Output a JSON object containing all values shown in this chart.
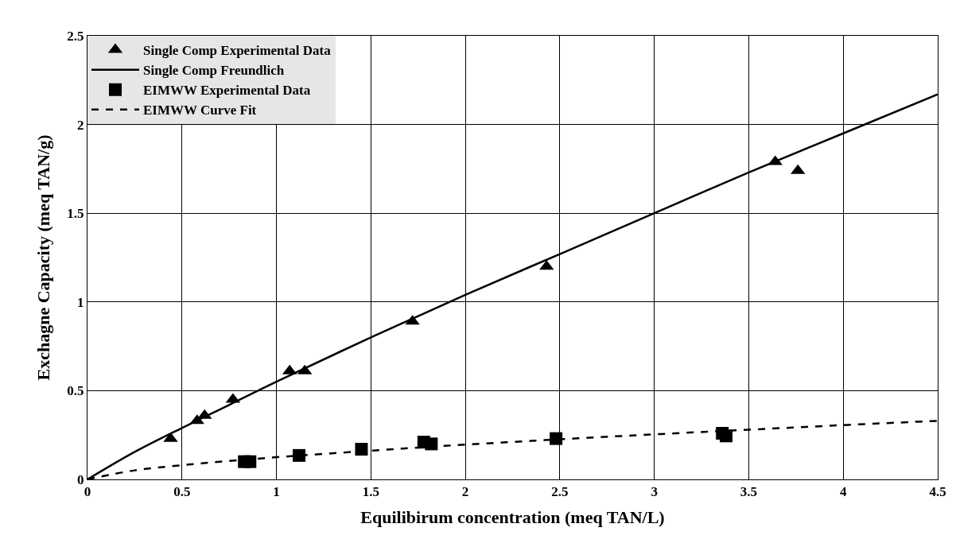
{
  "chart_data": {
    "type": "scatter",
    "xlabel": "Equilibirum concentration (meq TAN/L)",
    "ylabel": "Exchagne Capacity (meq TAN/g)",
    "xlim": [
      0,
      4.5
    ],
    "xticks": [
      0,
      0.5,
      1,
      1.5,
      2,
      2.5,
      3,
      3.5,
      4,
      4.5
    ],
    "ylim": [
      0,
      2.5
    ],
    "yticks": [
      0,
      0.5,
      1,
      1.5,
      2,
      2.5
    ],
    "grid": true,
    "legend": "top left",
    "series": [
      {
        "name": "Single Comp Experimental Data",
        "marker": "triangle",
        "color": "#000000",
        "x": [
          0.44,
          0.58,
          0.62,
          0.77,
          1.07,
          1.15,
          1.72,
          2.43,
          3.64,
          3.76
        ],
        "values": [
          0.23,
          0.33,
          0.36,
          0.45,
          0.61,
          0.61,
          0.89,
          1.2,
          1.79,
          1.74
        ]
      },
      {
        "name": "Single Comp Freundlich",
        "type": "line",
        "line_style": "solid",
        "color": "#000000",
        "x": [
          0,
          0.25,
          0.5,
          0.75,
          1,
          1.5,
          2,
          2.5,
          3,
          3.5,
          4,
          4.5
        ],
        "values": [
          0,
          0.155,
          0.29,
          0.42,
          0.55,
          0.8,
          1.04,
          1.27,
          1.5,
          1.73,
          1.95,
          2.17
        ]
      },
      {
        "name": "EIMWW Experimental Data",
        "marker": "square",
        "color": "#000000",
        "x": [
          0.83,
          0.86,
          1.12,
          1.45,
          1.78,
          1.82,
          2.48,
          3.36,
          3.38
        ],
        "values": [
          0.1,
          0.1,
          0.135,
          0.17,
          0.21,
          0.2,
          0.23,
          0.26,
          0.245
        ]
      },
      {
        "name": "EIMWW Curve Fit",
        "type": "line",
        "line_style": "dashed",
        "color": "#000000",
        "x": [
          0,
          0.25,
          0.5,
          0.75,
          1,
          1.5,
          2,
          2.5,
          3,
          3.5,
          4,
          4.5
        ],
        "values": [
          0,
          0.051,
          0.08,
          0.104,
          0.125,
          0.162,
          0.196,
          0.226,
          0.254,
          0.28,
          0.306,
          0.33
        ]
      }
    ]
  }
}
